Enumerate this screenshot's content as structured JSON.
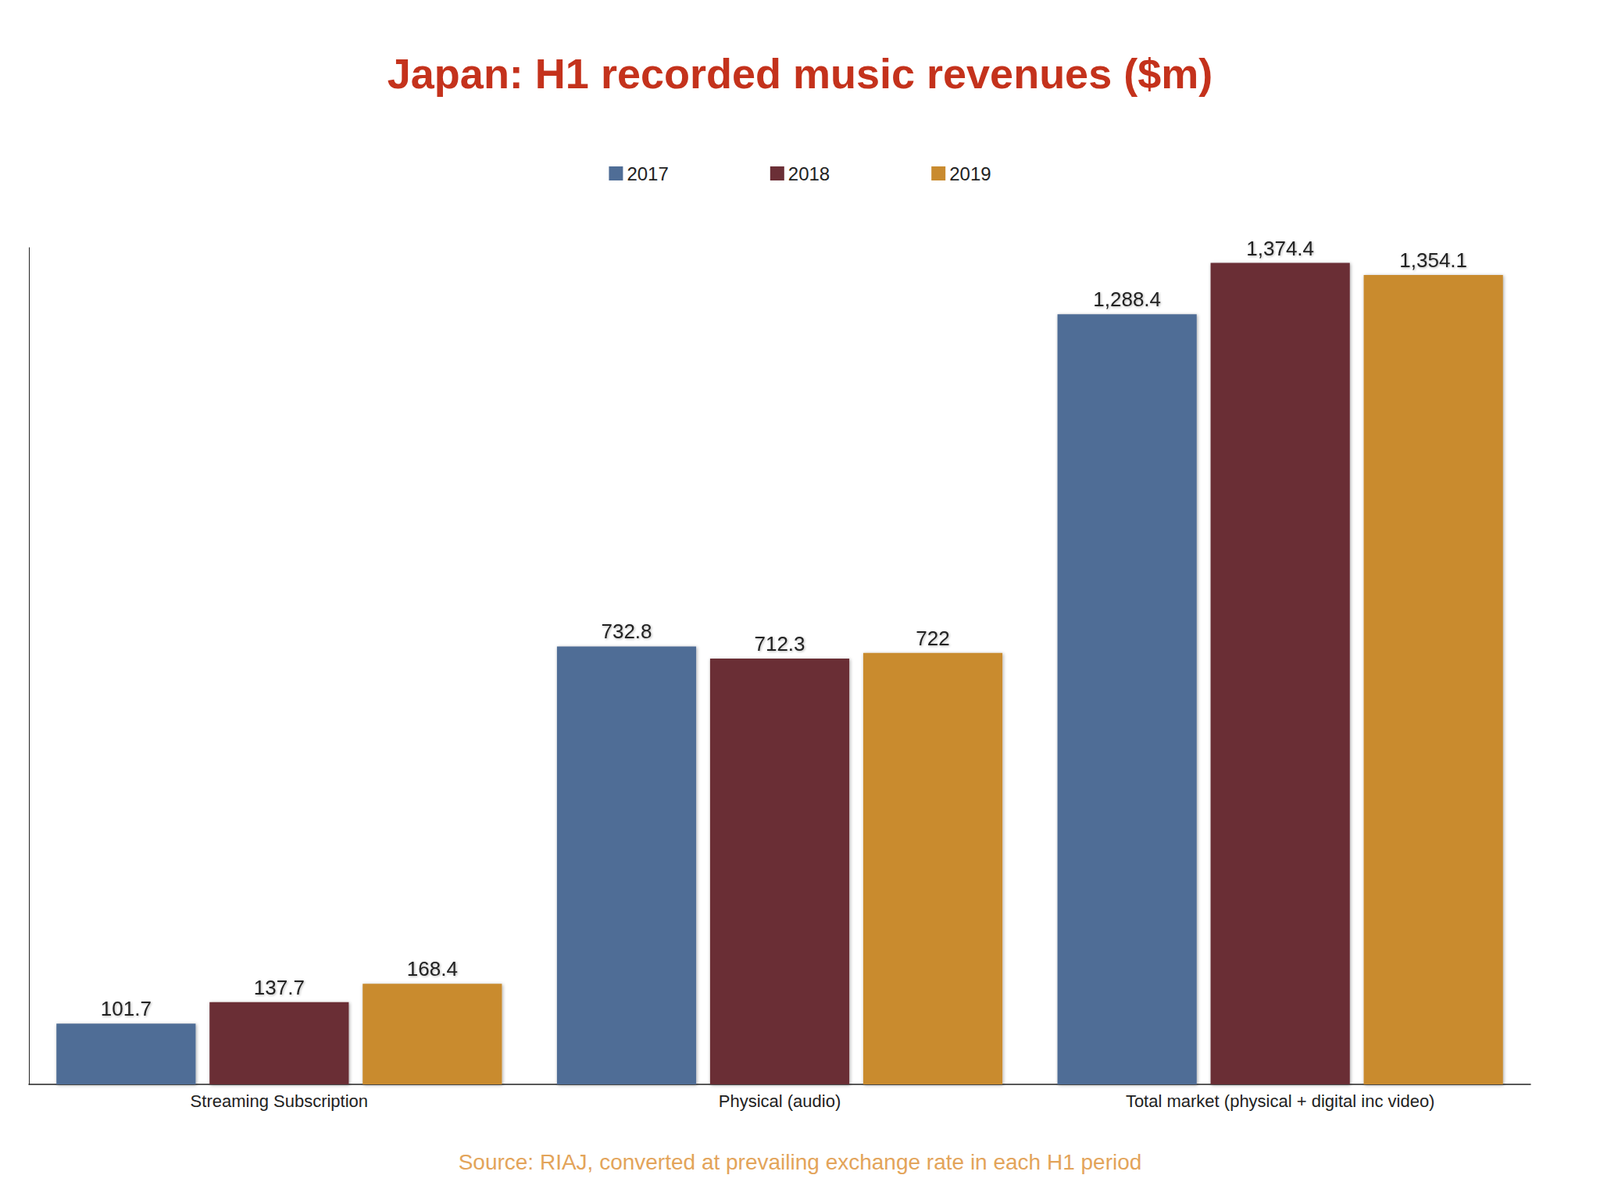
{
  "chart_data": {
    "type": "bar",
    "title": "Japan: H1 recorded music revenues ($m)",
    "source": "Source: RIAJ, converted at prevailing exchange rate in each H1 period",
    "categories": [
      "Streaming Subscription",
      "Physical (audio)",
      "Total market (physical + digital inc video)"
    ],
    "series": [
      {
        "name": "2017",
        "color": "#4f6d96",
        "values": [
          101.7,
          732.8,
          1288.4
        ],
        "value_labels": [
          "101.7",
          "732.8",
          "1,288.4"
        ]
      },
      {
        "name": "2018",
        "color": "#6b2f36",
        "values": [
          137.7,
          712.3,
          1374.4
        ],
        "value_labels": [
          "137.7",
          "712.3",
          "1,374.4"
        ]
      },
      {
        "name": "2019",
        "color": "#c98b2f",
        "values": [
          168.4,
          722,
          1354.1
        ],
        "value_labels": [
          "168.4",
          "722",
          "1,354.1"
        ]
      }
    ],
    "ylim": [
      0,
      1400
    ],
    "grid": false,
    "legend": "top",
    "data_labels": true,
    "tick_labels": "x"
  }
}
